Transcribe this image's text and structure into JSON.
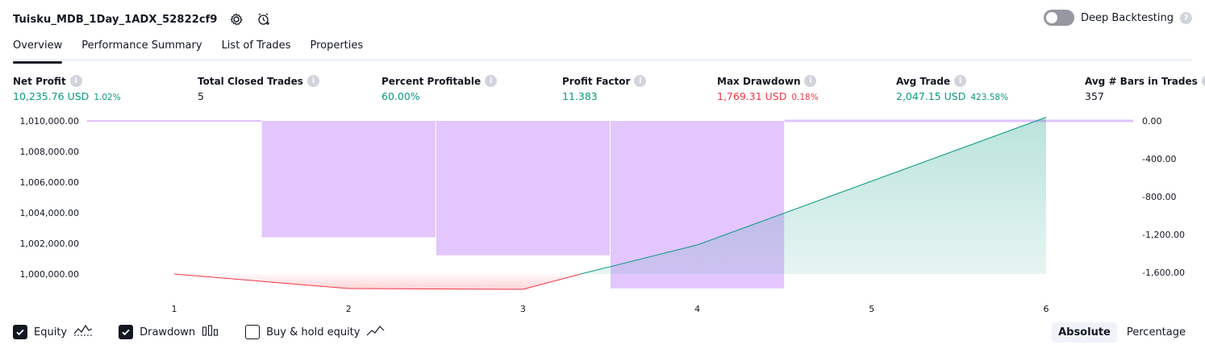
{
  "strategy": {
    "name": "Tuisku_MDB_1Day_1ADX_52822cf9",
    "settings_icon": "gear-icon",
    "alert_icon": "alarm-clock-add-icon"
  },
  "deep_backtesting": {
    "label": "Deep Backtesting",
    "enabled": false,
    "help": "?"
  },
  "tabs": [
    {
      "label": "Overview",
      "active": true
    },
    {
      "label": "Performance Summary",
      "active": false
    },
    {
      "label": "List of Trades",
      "active": false
    },
    {
      "label": "Properties",
      "active": false
    }
  ],
  "metrics": {
    "net_profit": {
      "label": "Net Profit",
      "value": "10,235.76 USD",
      "sub": "1.02%"
    },
    "total_closed_trades": {
      "label": "Total Closed Trades",
      "value": "5"
    },
    "percent_profitable": {
      "label": "Percent Profitable",
      "value": "60.00%"
    },
    "profit_factor": {
      "label": "Profit Factor",
      "value": "11.383"
    },
    "max_drawdown": {
      "label": "Max Drawdown",
      "value": "1,769.31 USD",
      "sub": "0.18%"
    },
    "avg_trade": {
      "label": "Avg Trade",
      "value": "2,047.15 USD",
      "sub": "423.58%"
    },
    "avg_bars": {
      "label": "Avg # Bars in Trades",
      "value": "357"
    }
  },
  "colors": {
    "green": "#089981",
    "red": "#f23645",
    "drawdown": "#e1c3fd",
    "equity_fill": "#c5ebe2"
  },
  "chart_data": {
    "type": "area",
    "x_ticks": [
      "1",
      "2",
      "3",
      "4",
      "5",
      "6"
    ],
    "left_axis": {
      "ticks": [
        1000000,
        1002000,
        1004000,
        1006000,
        1008000,
        1010000
      ],
      "labels": [
        "1,000,000.00",
        "1,002,000.00",
        "1,004,000.00",
        "1,006,000.00",
        "1,008,000.00",
        "1,010,000.00"
      ],
      "range": [
        999000,
        1010000
      ]
    },
    "right_axis": {
      "ticks": [
        0,
        -400,
        -800,
        -1200,
        -1600
      ],
      "labels": [
        "0.00",
        "-400.00",
        "-800.00",
        "-1,200.00",
        "-1,600.00"
      ],
      "range": [
        -1840,
        0
      ]
    },
    "equity": {
      "name": "Equity",
      "x": [
        1,
        2,
        3,
        3.33,
        4,
        6
      ],
      "values": [
        1000000,
        999050,
        999000,
        1000000,
        1001900,
        1010235.76
      ]
    },
    "drawdown": {
      "name": "Drawdown",
      "bars": [
        {
          "from": 1.5,
          "to": 2.5,
          "value": -1230
        },
        {
          "from": 2.5,
          "to": 3.5,
          "value": -1420
        },
        {
          "from": 3.5,
          "to": 4.5,
          "value": -1769.31
        }
      ],
      "zero_line_x": [
        0.5,
        1.5,
        4.5,
        6.5
      ]
    }
  },
  "legend": [
    {
      "label": "Equity",
      "checked": true,
      "icon": "equity-line-icon"
    },
    {
      "label": "Drawdown",
      "checked": true,
      "icon": "drawdown-bars-icon"
    },
    {
      "label": "Buy & hold equity",
      "checked": false,
      "icon": "buy-hold-line-icon"
    }
  ],
  "mode": {
    "absolute": "Absolute",
    "percentage": "Percentage",
    "selected": "Absolute"
  }
}
